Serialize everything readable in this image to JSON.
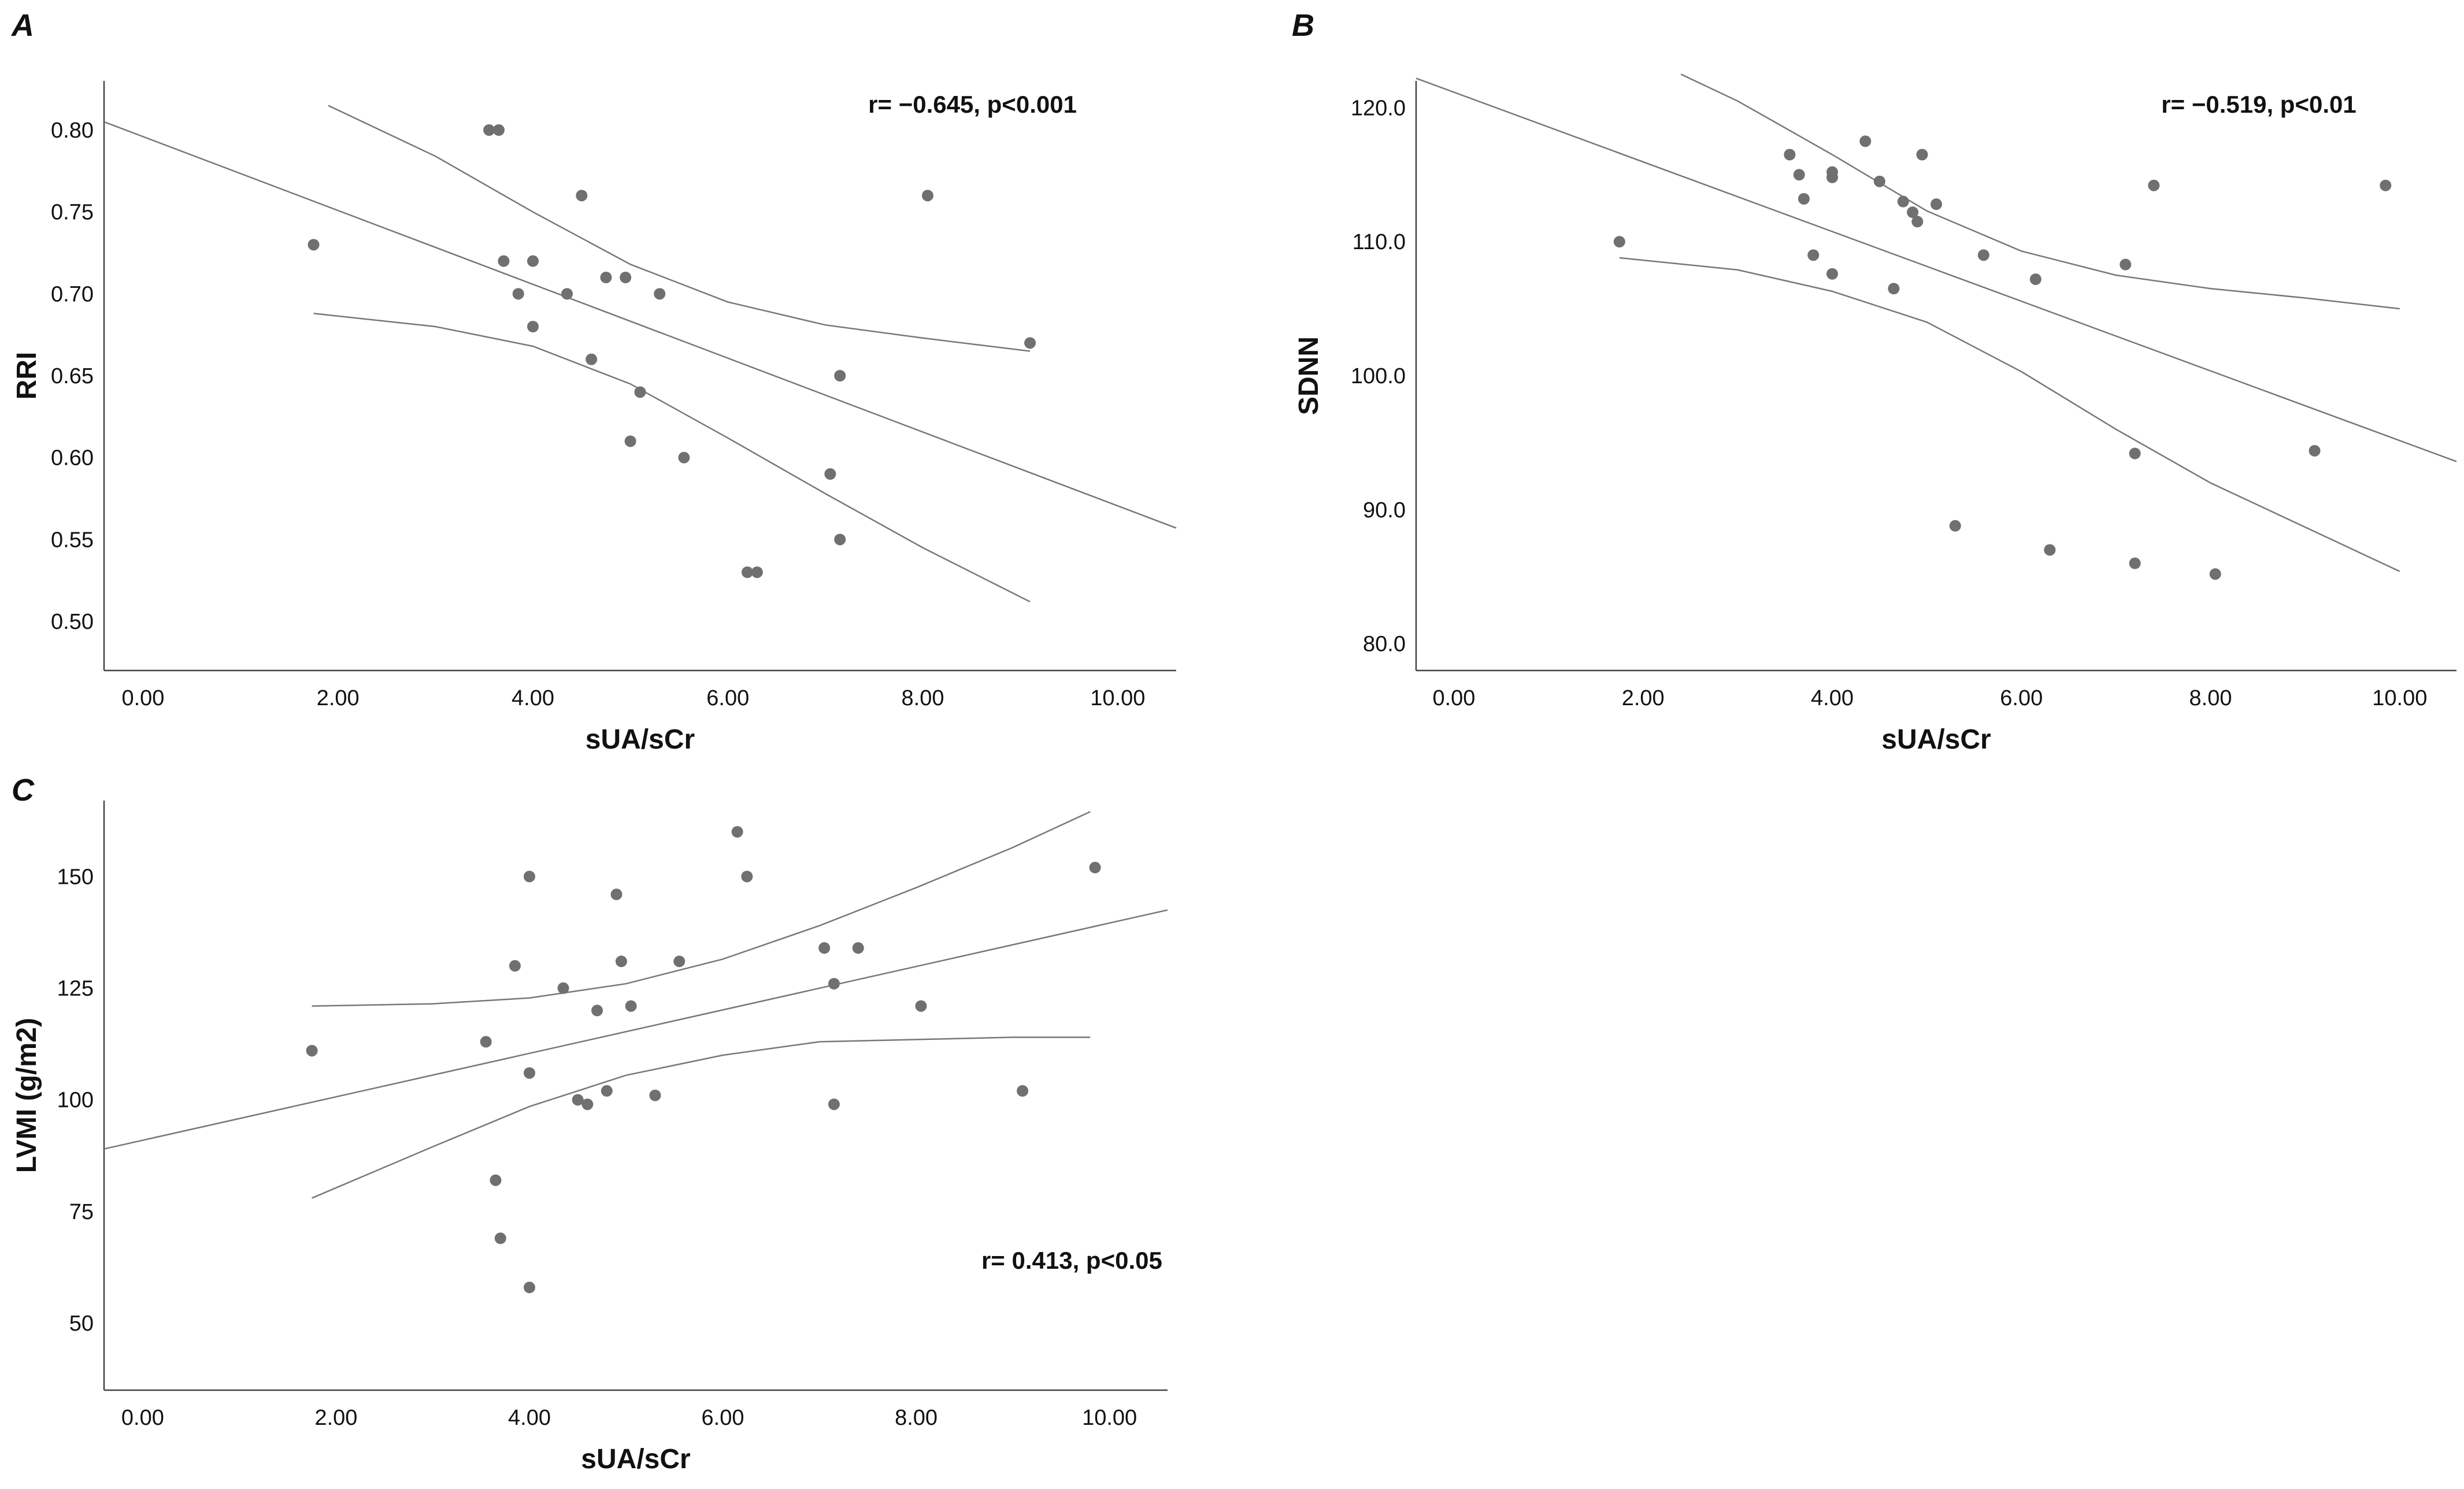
{
  "chart_data": [
    {
      "panel": "A",
      "type": "scatter",
      "xlabel": "sUA/sCr",
      "ylabel": "RRI",
      "annotation": "r= −0.645, p<0.001",
      "annotation_position": "top-right",
      "xlim": [
        -0.4,
        10.6
      ],
      "ylim": [
        0.47,
        0.83
      ],
      "xticks": [
        0,
        2,
        4,
        6,
        8,
        10
      ],
      "xtick_labels": [
        "0.00",
        "2.00",
        "4.00",
        "6.00",
        "8.00",
        "10.00"
      ],
      "yticks": [
        0.5,
        0.55,
        0.6,
        0.65,
        0.7,
        0.75,
        0.8
      ],
      "ytick_labels": [
        "0.50",
        "0.55",
        "0.60",
        "0.65",
        "0.70",
        "0.75",
        "0.80"
      ],
      "points": [
        [
          1.75,
          0.73
        ],
        [
          3.55,
          0.8
        ],
        [
          3.65,
          0.8
        ],
        [
          3.7,
          0.72
        ],
        [
          3.85,
          0.7
        ],
        [
          4.0,
          0.72
        ],
        [
          4.0,
          0.68
        ],
        [
          4.35,
          0.7
        ],
        [
          4.5,
          0.76
        ],
        [
          4.6,
          0.66
        ],
        [
          4.75,
          0.71
        ],
        [
          4.95,
          0.71
        ],
        [
          5.0,
          0.61
        ],
        [
          5.1,
          0.64
        ],
        [
          5.3,
          0.7
        ],
        [
          5.55,
          0.6
        ],
        [
          6.2,
          0.53
        ],
        [
          6.3,
          0.53
        ],
        [
          7.05,
          0.59
        ],
        [
          7.15,
          0.55
        ],
        [
          7.15,
          0.65
        ],
        [
          8.05,
          0.76
        ],
        [
          9.1,
          0.67
        ]
      ],
      "fit_line": {
        "x": [
          -0.4,
          10.6
        ],
        "y": [
          0.805,
          0.557
        ]
      },
      "ci_upper": {
        "x": [
          1.9,
          3.0,
          4.0,
          5.0,
          6.0,
          7.0,
          8.0,
          9.1
        ],
        "y": [
          0.815,
          0.784,
          0.75,
          0.718,
          0.695,
          0.681,
          0.673,
          0.665
        ]
      },
      "ci_lower": {
        "x": [
          1.75,
          3.0,
          4.0,
          5.0,
          6.0,
          7.0,
          8.0,
          9.1
        ],
        "y": [
          0.688,
          0.68,
          0.668,
          0.645,
          0.612,
          0.578,
          0.545,
          0.512
        ]
      }
    },
    {
      "panel": "B",
      "type": "scatter",
      "xlabel": "sUA/sCr",
      "ylabel": "SDNN",
      "annotation": "r= −0.519, p<0.01",
      "annotation_position": "top-right",
      "xlim": [
        -0.4,
        10.6
      ],
      "ylim": [
        78,
        122
      ],
      "xticks": [
        0,
        2,
        4,
        6,
        8,
        10
      ],
      "xtick_labels": [
        "0.00",
        "2.00",
        "4.00",
        "6.00",
        "8.00",
        "10.00"
      ],
      "yticks": [
        80,
        90,
        100,
        110,
        120
      ],
      "ytick_labels": [
        "80.0",
        "90.0",
        "100.0",
        "110.0",
        "120.0"
      ],
      "points": [
        [
          1.75,
          110.0
        ],
        [
          3.55,
          116.5
        ],
        [
          3.65,
          115.0
        ],
        [
          3.7,
          113.2
        ],
        [
          3.8,
          109.0
        ],
        [
          4.0,
          115.2
        ],
        [
          4.0,
          114.8
        ],
        [
          4.0,
          107.6
        ],
        [
          4.35,
          117.5
        ],
        [
          4.5,
          114.5
        ],
        [
          4.65,
          106.5
        ],
        [
          4.75,
          113.0
        ],
        [
          4.85,
          112.2
        ],
        [
          4.9,
          111.5
        ],
        [
          4.95,
          116.5
        ],
        [
          5.1,
          112.8
        ],
        [
          5.3,
          88.8
        ],
        [
          5.6,
          109.0
        ],
        [
          6.15,
          107.2
        ],
        [
          6.3,
          87.0
        ],
        [
          7.1,
          108.3
        ],
        [
          7.2,
          94.2
        ],
        [
          7.2,
          86.0
        ],
        [
          7.4,
          114.2
        ],
        [
          8.05,
          85.2
        ],
        [
          9.1,
          94.4
        ],
        [
          9.85,
          114.2
        ]
      ],
      "fit_line": {
        "x": [
          -0.4,
          10.6
        ],
        "y": [
          122.2,
          93.6
        ]
      },
      "ci_upper": {
        "x": [
          2.4,
          3.0,
          4.0,
          5.0,
          6.0,
          7.0,
          8.0,
          9.0,
          10.0
        ],
        "y": [
          122.5,
          120.5,
          116.5,
          112.3,
          109.3,
          107.5,
          106.5,
          105.8,
          105.0
        ]
      },
      "ci_lower": {
        "x": [
          1.75,
          3.0,
          4.0,
          5.0,
          6.0,
          7.0,
          8.0,
          9.0,
          10.0
        ],
        "y": [
          108.8,
          107.9,
          106.3,
          104.0,
          100.3,
          96.0,
          92.0,
          88.7,
          85.4
        ]
      }
    },
    {
      "panel": "C",
      "type": "scatter",
      "xlabel": "sUA/sCr",
      "ylabel": "LVMI (g/m2)",
      "annotation": "r= 0.413, p<0.05",
      "annotation_position": "bottom-right",
      "xlim": [
        -0.4,
        10.6
      ],
      "ylim": [
        35,
        167
      ],
      "xticks": [
        0,
        2,
        4,
        6,
        8,
        10
      ],
      "xtick_labels": [
        "0.00",
        "2.00",
        "4.00",
        "6.00",
        "8.00",
        "10.00"
      ],
      "yticks": [
        50,
        75,
        100,
        125,
        150
      ],
      "ytick_labels": [
        "50",
        "75",
        "100",
        "125",
        "150"
      ],
      "points": [
        [
          1.75,
          111
        ],
        [
          3.55,
          113
        ],
        [
          3.65,
          82
        ],
        [
          3.7,
          69
        ],
        [
          3.85,
          130
        ],
        [
          4.0,
          150
        ],
        [
          4.0,
          106
        ],
        [
          4.0,
          58
        ],
        [
          4.35,
          125
        ],
        [
          4.5,
          100
        ],
        [
          4.6,
          99
        ],
        [
          4.7,
          120
        ],
        [
          4.8,
          102
        ],
        [
          4.9,
          146
        ],
        [
          4.95,
          131
        ],
        [
          5.05,
          121
        ],
        [
          5.3,
          101
        ],
        [
          5.55,
          131
        ],
        [
          6.15,
          160
        ],
        [
          6.25,
          150
        ],
        [
          7.05,
          134
        ],
        [
          7.15,
          126
        ],
        [
          7.15,
          99
        ],
        [
          7.4,
          134
        ],
        [
          8.05,
          121
        ],
        [
          9.1,
          102
        ],
        [
          9.85,
          152
        ]
      ],
      "fit_line": {
        "x": [
          -0.4,
          10.6
        ],
        "y": [
          89,
          142.5
        ]
      },
      "ci_upper": {
        "x": [
          1.75,
          3.0,
          4.0,
          5.0,
          6.0,
          7.0,
          8.0,
          9.0,
          9.8
        ],
        "y": [
          121,
          121.5,
          122.8,
          126.0,
          131.5,
          139.0,
          147.5,
          156.5,
          164.5
        ]
      },
      "ci_lower": {
        "x": [
          1.75,
          3.0,
          4.0,
          5.0,
          6.0,
          7.0,
          8.0,
          9.0,
          9.8
        ],
        "y": [
          78,
          89.5,
          98.5,
          105.5,
          110.0,
          113.0,
          113.5,
          114.0,
          114.0
        ]
      }
    }
  ]
}
